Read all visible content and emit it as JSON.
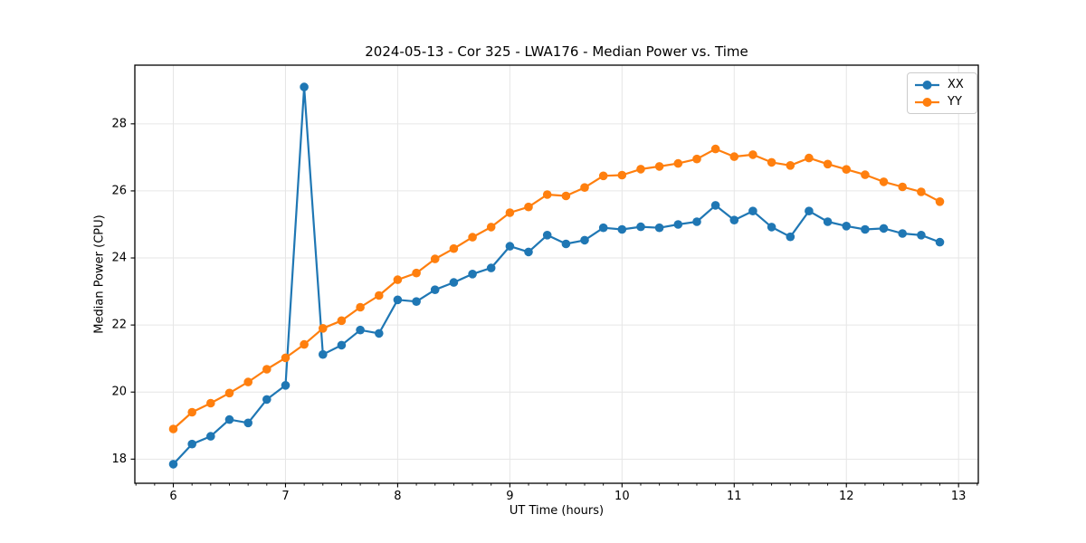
{
  "chart_data": {
    "type": "line",
    "title": "2024-05-13 - Cor 325 - LWA176 - Median Power vs. Time",
    "xlabel": "UT Time (hours)",
    "ylabel": "Median Power (CPU)",
    "x": [
      6.0,
      6.1667,
      6.3333,
      6.5,
      6.6667,
      6.8333,
      7.0,
      7.1667,
      7.3333,
      7.5,
      7.6667,
      7.8333,
      8.0,
      8.1667,
      8.3333,
      8.5,
      8.6667,
      8.8333,
      9.0,
      9.1667,
      9.3333,
      9.5,
      9.6667,
      9.8333,
      10.0,
      10.1667,
      10.3333,
      10.5,
      10.6667,
      10.8333,
      11.0,
      11.1667,
      11.3333,
      11.5,
      11.6667,
      11.8333,
      12.0,
      12.1667,
      12.3333,
      12.5,
      12.6667,
      12.8333
    ],
    "series": [
      {
        "name": "XX",
        "color": "#1f77b4",
        "values": [
          17.85,
          18.45,
          18.68,
          19.18,
          19.08,
          19.78,
          20.2,
          29.1,
          21.12,
          21.4,
          21.85,
          21.75,
          22.75,
          22.7,
          23.05,
          23.27,
          23.52,
          23.7,
          24.35,
          24.18,
          24.68,
          24.42,
          24.53,
          24.9,
          24.85,
          24.93,
          24.9,
          25.0,
          25.08,
          25.57,
          25.13,
          25.4,
          24.92,
          24.63,
          25.4,
          25.08,
          24.95,
          24.85,
          24.88,
          24.73,
          24.68,
          24.47
        ]
      },
      {
        "name": "YY",
        "color": "#ff7f0e",
        "values": [
          18.9,
          19.4,
          19.67,
          19.97,
          20.3,
          20.68,
          21.02,
          21.42,
          21.9,
          22.13,
          22.53,
          22.88,
          23.35,
          23.55,
          23.97,
          24.28,
          24.62,
          24.92,
          25.35,
          25.52,
          25.89,
          25.85,
          26.1,
          26.45,
          26.47,
          26.65,
          26.73,
          26.82,
          26.95,
          27.25,
          27.02,
          27.08,
          26.85,
          26.76,
          26.98,
          26.8,
          26.64,
          26.48,
          26.27,
          26.12,
          25.97,
          25.68
        ]
      }
    ],
    "xlim": [
      5.657,
      13.176
    ],
    "ylim": [
      17.28,
      29.75
    ],
    "xticks": [
      6,
      7,
      8,
      9,
      10,
      11,
      12,
      13
    ],
    "yticks": [
      18,
      20,
      22,
      24,
      26,
      28
    ],
    "x_minor_step": 0.166667,
    "grid": true,
    "legend_position": "upper right"
  },
  "colors": {
    "grid": "#e6e6e6",
    "spine": "#000000",
    "background": "#ffffff"
  }
}
